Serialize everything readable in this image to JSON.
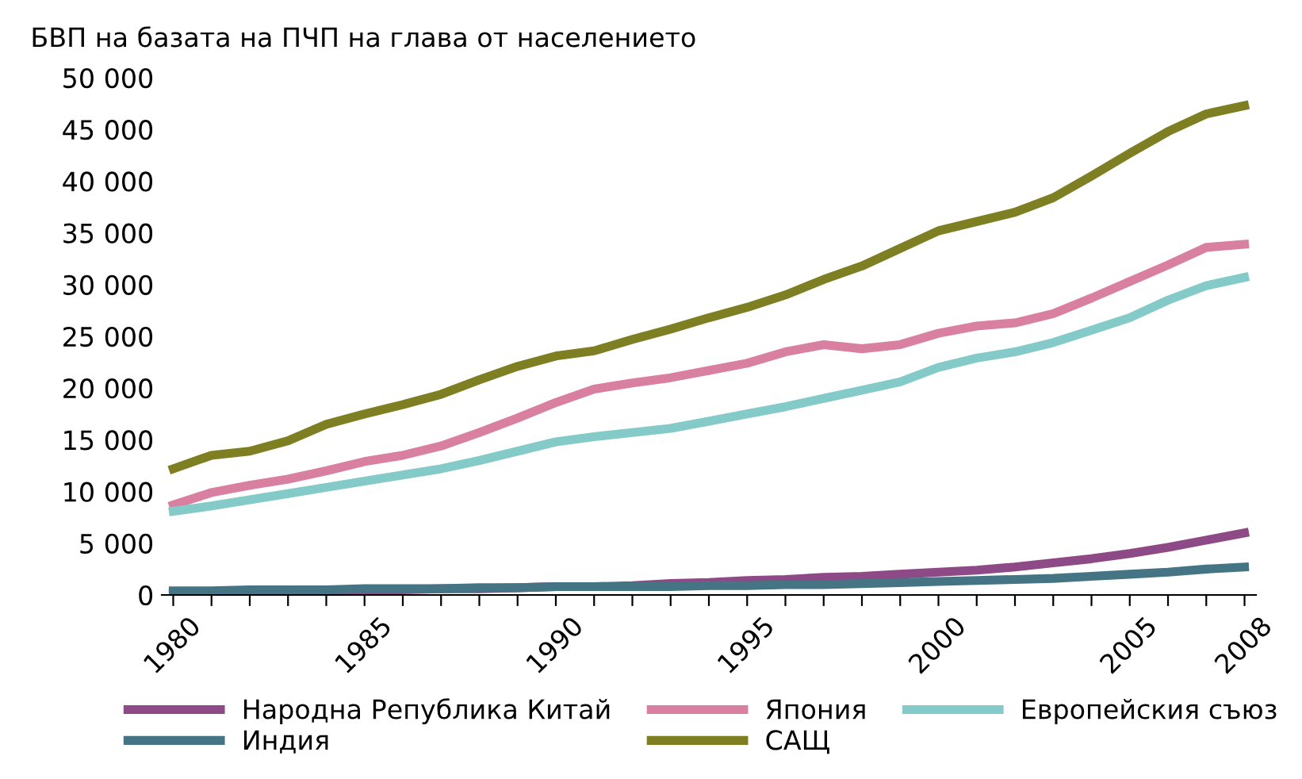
{
  "chart_data": {
    "type": "line",
    "title": "БВП на базата на ПЧП на глава от населението",
    "categories": [
      "1980",
      null,
      null,
      null,
      null,
      "1985",
      null,
      null,
      null,
      null,
      "1990",
      null,
      null,
      null,
      null,
      "1995",
      null,
      null,
      null,
      null,
      "2000",
      null,
      null,
      null,
      null,
      "2005",
      null,
      null,
      "2008"
    ],
    "series": [
      {
        "name": "Народна Република Китай",
        "color": "#8e4a86",
        "values": [
          200,
          300,
          300,
          400,
          400,
          500,
          500,
          600,
          600,
          700,
          800,
          800,
          900,
          1100,
          1200,
          1400,
          1500,
          1700,
          1800,
          2000,
          2200,
          2400,
          2700,
          3100,
          3500,
          4000,
          4600,
          5300,
          6000
        ]
      },
      {
        "name": "Индия",
        "color": "#457585",
        "values": [
          400,
          400,
          500,
          500,
          500,
          600,
          600,
          600,
          700,
          700,
          800,
          800,
          800,
          800,
          900,
          900,
          1000,
          1000,
          1100,
          1200,
          1300,
          1400,
          1500,
          1600,
          1800,
          2000,
          2200,
          2500,
          2700
        ]
      },
      {
        "name": "Япония",
        "color": "#d97fa0",
        "values": [
          8700,
          9900,
          10600,
          11200,
          12000,
          12900,
          13500,
          14400,
          15700,
          17100,
          18600,
          19900,
          20500,
          21000,
          21700,
          22400,
          23500,
          24200,
          23800,
          24200,
          25300,
          26000,
          26300,
          27200,
          28700,
          30300,
          31900,
          33600,
          33900
        ]
      },
      {
        "name": "САЩ",
        "color": "#7d7f22",
        "values": [
          12200,
          13500,
          13900,
          14900,
          16500,
          17500,
          18400,
          19400,
          20800,
          22100,
          23100,
          23600,
          24700,
          25700,
          26800,
          27800,
          29000,
          30500,
          31800,
          33500,
          35200,
          36100,
          37000,
          38400,
          40500,
          42700,
          44800,
          46500,
          47300
        ]
      },
      {
        "name": "Европейския съюз",
        "color": "#83cac8",
        "values": [
          8100,
          8600,
          9200,
          9800,
          10400,
          11000,
          11600,
          12200,
          13000,
          13900,
          14800,
          15300,
          15700,
          16100,
          16800,
          17500,
          18200,
          19000,
          19800,
          20600,
          22000,
          22900,
          23500,
          24400,
          25600,
          26800,
          28500,
          29900,
          30700
        ]
      }
    ],
    "ylim": [
      0,
      50000
    ],
    "yticks": [
      0,
      {
        "value": 5000,
        "label": "5 000"
      },
      {
        "value": 10000,
        "label": "10 000"
      },
      {
        "value": 15000,
        "label": "15 000"
      },
      {
        "value": 20000,
        "label": "20 000"
      },
      {
        "value": 25000,
        "label": "25 000"
      },
      {
        "value": 30000,
        "label": "30 000"
      },
      {
        "value": 35000,
        "label": "35 000"
      },
      {
        "value": 40000,
        "label": "40 000"
      },
      {
        "value": 45000,
        "label": "45 000"
      },
      {
        "value": 50000,
        "label": "50 000"
      }
    ],
    "grid": false,
    "legend": "bottom",
    "marker": "none",
    "line_style": "solid"
  }
}
